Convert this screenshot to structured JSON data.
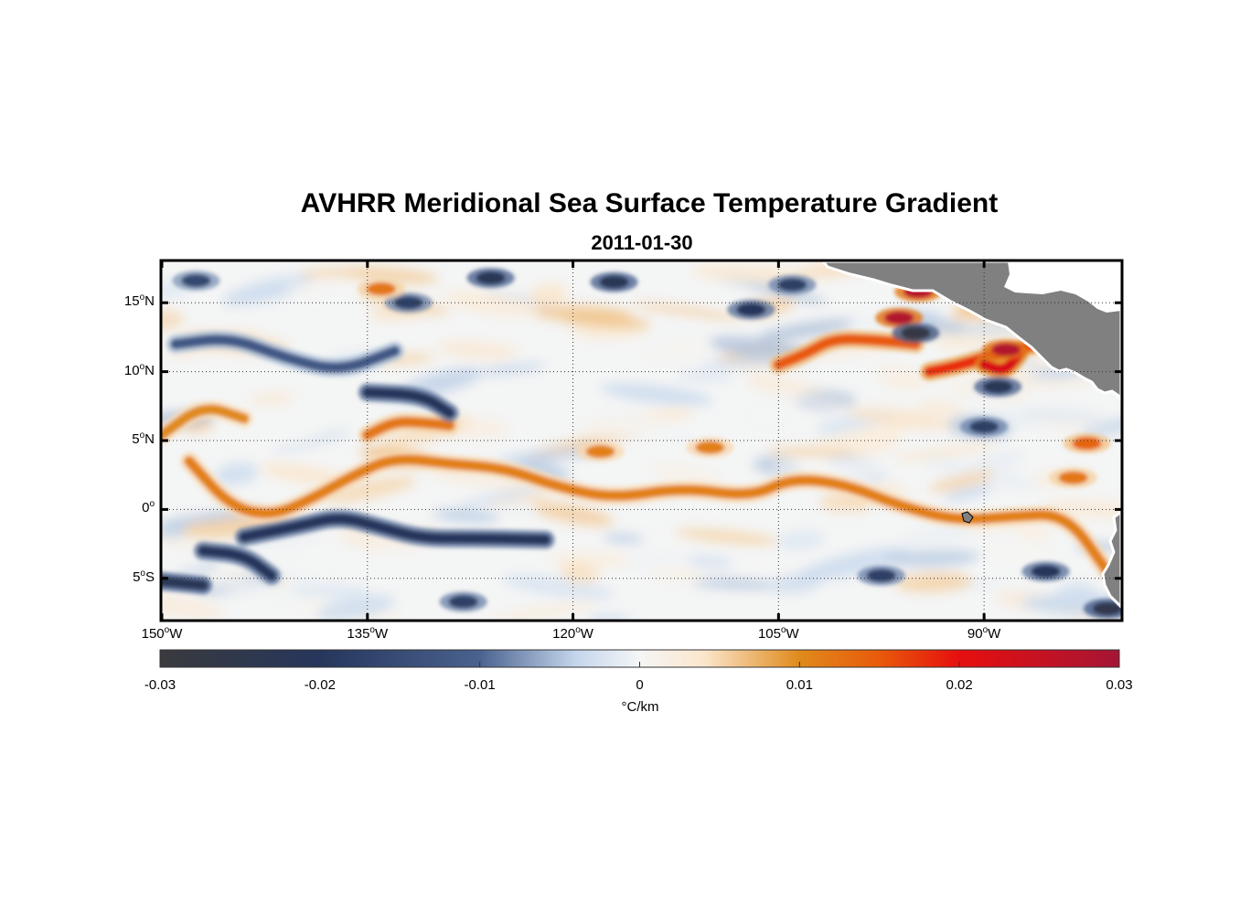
{
  "title": "AVHRR Meridional Sea Surface Temperature Gradient",
  "subtitle": "2011-01-30",
  "colors": {
    "land": "#808080",
    "grid": "#333333",
    "positive": "#e0600a",
    "strong_positive": "#d40f0f",
    "negative": "#2c3e63",
    "light_negative": "#b9cde6",
    "light_positive": "#f6dcc0"
  },
  "chart_data": {
    "type": "heatmap",
    "title": "AVHRR Meridional Sea Surface Temperature Gradient",
    "subtitle": "2011-01-30",
    "lon_range": [
      -150,
      -80
    ],
    "lat_range": [
      -8,
      18
    ],
    "x_ticks": [
      {
        "value": -150,
        "deg": "150",
        "hemi": "W"
      },
      {
        "value": -135,
        "deg": "135",
        "hemi": "W"
      },
      {
        "value": -120,
        "deg": "120",
        "hemi": "W"
      },
      {
        "value": -105,
        "deg": "105",
        "hemi": "W"
      },
      {
        "value": -90,
        "deg": "90",
        "hemi": "W"
      }
    ],
    "y_ticks": [
      {
        "value": 15,
        "deg": "15",
        "hemi": "N"
      },
      {
        "value": 10,
        "deg": "10",
        "hemi": "N"
      },
      {
        "value": 5,
        "deg": "5",
        "hemi": "N"
      },
      {
        "value": 0,
        "deg": "0",
        "hemi": ""
      },
      {
        "value": -5,
        "deg": "5",
        "hemi": "S"
      }
    ],
    "grid": "dotted",
    "colorbar": {
      "range": [
        -0.03,
        0.03
      ],
      "ticks": [
        "-0.03",
        "-0.02",
        "-0.01",
        "0",
        "0.01",
        "0.02",
        "0.03"
      ],
      "tick_values": [
        -0.03,
        -0.02,
        -0.01,
        0,
        0.01,
        0.02,
        0.03
      ],
      "label": "°C/km",
      "stops": [
        {
          "v": -0.03,
          "c": "#3a3a3e"
        },
        {
          "v": -0.02,
          "c": "#26365c"
        },
        {
          "v": -0.01,
          "c": "#4a628f"
        },
        {
          "v": -0.004,
          "c": "#c4d6ec"
        },
        {
          "v": 0,
          "c": "#f5f6f6"
        },
        {
          "v": 0.004,
          "c": "#fbe6cc"
        },
        {
          "v": 0.01,
          "c": "#e08a1c"
        },
        {
          "v": 0.015,
          "c": "#e85a0a"
        },
        {
          "v": 0.02,
          "c": "#e60f0f"
        },
        {
          "v": 0.03,
          "c": "#a51535"
        }
      ]
    },
    "features": [
      {
        "kind": "band",
        "name": "equatorial-front",
        "sign": "positive",
        "value": 0.011,
        "path": [
          [
            -148,
            3.5
          ],
          [
            -145,
            0.2
          ],
          [
            -142,
            -0.5
          ],
          [
            -139,
            0.8
          ],
          [
            -136,
            2.5
          ],
          [
            -133,
            3.8
          ],
          [
            -129,
            3.3
          ],
          [
            -125,
            3.0
          ],
          [
            -121,
            1.6
          ],
          [
            -117,
            0.8
          ],
          [
            -112,
            1.6
          ],
          [
            -107,
            0.9
          ],
          [
            -104,
            2.3
          ],
          [
            -100,
            1.8
          ],
          [
            -96,
            0.2
          ],
          [
            -92,
            -0.8
          ],
          [
            -88,
            -0.5
          ],
          [
            -84,
            -0.3
          ],
          [
            -81,
            -4.5
          ]
        ]
      },
      {
        "kind": "band",
        "name": "north-front-west",
        "sign": "positive",
        "value": 0.01,
        "path": [
          [
            -150,
            5.4
          ],
          [
            -147,
            7.6
          ],
          [
            -144,
            6.6
          ]
        ]
      },
      {
        "kind": "band",
        "name": "north-front-mid",
        "sign": "positive",
        "value": 0.012,
        "path": [
          [
            -135,
            5.4
          ],
          [
            -133,
            6.4
          ],
          [
            -131,
            6.3
          ],
          [
            -129,
            6.1
          ]
        ]
      },
      {
        "kind": "band",
        "name": "south-negative-band",
        "sign": "negative",
        "value": -0.02,
        "path": [
          [
            -144,
            -2.0
          ],
          [
            -140,
            -1.2
          ],
          [
            -137,
            -0.5
          ],
          [
            -134,
            -1.3
          ],
          [
            -131,
            -2.1
          ],
          [
            -127,
            -2.1
          ],
          [
            -122,
            -2.2
          ]
        ]
      },
      {
        "kind": "band",
        "name": "southwest-negative-arc",
        "sign": "negative",
        "value": -0.02,
        "path": [
          [
            -147,
            -3.0
          ],
          [
            -144,
            -3.3
          ],
          [
            -142,
            -4.8
          ]
        ]
      },
      {
        "kind": "band",
        "name": "southwest-negative-corner",
        "sign": "negative",
        "value": -0.022,
        "path": [
          [
            -150,
            -5.2
          ],
          [
            -147,
            -5.5
          ]
        ]
      },
      {
        "kind": "band",
        "name": "northwest-negative-band",
        "sign": "negative",
        "value": -0.012,
        "path": [
          [
            -149,
            12.0
          ],
          [
            -145,
            12.5
          ],
          [
            -141,
            11.0
          ],
          [
            -137,
            10.0
          ],
          [
            -133,
            11.5
          ]
        ]
      },
      {
        "kind": "band",
        "name": "north-negative-arc",
        "sign": "negative",
        "value": -0.02,
        "path": [
          [
            -135,
            8.5
          ],
          [
            -131,
            8.3
          ],
          [
            -129,
            7.0
          ]
        ]
      },
      {
        "kind": "band",
        "name": "northeast-positive-1",
        "sign": "positive",
        "value": 0.015,
        "path": [
          [
            -105,
            10.5
          ],
          [
            -103,
            11.3
          ],
          [
            -101,
            12.4
          ],
          [
            -98,
            12.3
          ],
          [
            -95,
            12.0
          ]
        ]
      },
      {
        "kind": "band",
        "name": "tehuantepec-positive",
        "sign": "positive",
        "value": 0.018,
        "path": [
          [
            -94,
            10.0
          ],
          [
            -92,
            10.4
          ],
          [
            -90,
            11.0
          ],
          [
            -88,
            11.5
          ],
          [
            -86,
            12.0
          ]
        ]
      },
      {
        "kind": "band",
        "name": "papagayo-positive",
        "sign": "positive",
        "value": 0.022,
        "path": [
          [
            -90,
            10.5
          ],
          [
            -88.5,
            10.0
          ],
          [
            -87.5,
            11.2
          ]
        ]
      },
      {
        "kind": "blob",
        "name": "papagayo-eddy-pos",
        "sign": "positive",
        "value": 0.028,
        "lon": -88.4,
        "lat": 11.6
      },
      {
        "kind": "blob",
        "name": "gulf-eddy-pos",
        "sign": "positive",
        "value": 0.028,
        "lon": -96.2,
        "lat": 13.9
      },
      {
        "kind": "blob",
        "name": "gulf-top-pos",
        "sign": "positive",
        "value": 0.027,
        "lon": -94.8,
        "lat": 15.8
      },
      {
        "kind": "blob",
        "name": "gulf-eddy-neg",
        "sign": "negative",
        "value": -0.028,
        "lon": -95.0,
        "lat": 12.8
      },
      {
        "kind": "blob",
        "name": "papagayo-eddy-neg",
        "sign": "negative",
        "value": -0.022,
        "lon": -89.0,
        "lat": 8.9
      },
      {
        "kind": "blob",
        "name": "north-top-neg-1",
        "sign": "negative",
        "value": -0.022,
        "lon": -126.0,
        "lat": 16.8
      },
      {
        "kind": "blob",
        "name": "north-top-neg-2",
        "sign": "negative",
        "value": -0.022,
        "lon": -117.0,
        "lat": 16.5
      },
      {
        "kind": "blob",
        "name": "north-top-neg-3",
        "sign": "negative",
        "value": -0.018,
        "lon": -132.0,
        "lat": 15.0
      },
      {
        "kind": "blob",
        "name": "north-top-neg-4",
        "sign": "negative",
        "value": -0.02,
        "lon": -107.0,
        "lat": 14.5
      },
      {
        "kind": "blob",
        "name": "north-top-neg-5",
        "sign": "negative",
        "value": -0.018,
        "lon": -104.0,
        "lat": 16.3
      },
      {
        "kind": "blob",
        "name": "west-top-neg",
        "sign": "negative",
        "value": -0.016,
        "lon": -147.5,
        "lat": 16.6
      },
      {
        "kind": "blob",
        "name": "southeast-corner-neg",
        "sign": "negative",
        "value": -0.025,
        "lon": -81.0,
        "lat": -7.2
      },
      {
        "kind": "blob",
        "name": "south-mid-neg",
        "sign": "negative",
        "value": -0.018,
        "lon": -128.0,
        "lat": -6.7
      },
      {
        "kind": "blob",
        "name": "south-neg-2",
        "sign": "negative",
        "value": -0.018,
        "lon": -97.5,
        "lat": -4.8
      },
      {
        "kind": "blob",
        "name": "east-neg-1",
        "sign": "negative",
        "value": -0.018,
        "lon": -90.0,
        "lat": 6.0
      },
      {
        "kind": "blob",
        "name": "east-neg-2",
        "sign": "negative",
        "value": -0.02,
        "lon": -85.5,
        "lat": -4.5
      },
      {
        "kind": "blob",
        "name": "mid-pos-1",
        "sign": "positive",
        "value": 0.012,
        "lon": -134.0,
        "lat": 16.0
      },
      {
        "kind": "blob",
        "name": "mid-pos-2",
        "sign": "positive",
        "value": 0.011,
        "lon": -118.0,
        "lat": 4.2
      },
      {
        "kind": "blob",
        "name": "mid-pos-3",
        "sign": "positive",
        "value": 0.011,
        "lon": -110.0,
        "lat": 4.5
      },
      {
        "kind": "blob",
        "name": "east-pos-1",
        "sign": "positive",
        "value": 0.014,
        "lon": -82.5,
        "lat": 4.8
      },
      {
        "kind": "blob",
        "name": "east-pos-2",
        "sign": "positive",
        "value": 0.012,
        "lon": -83.5,
        "lat": 2.3
      }
    ]
  }
}
